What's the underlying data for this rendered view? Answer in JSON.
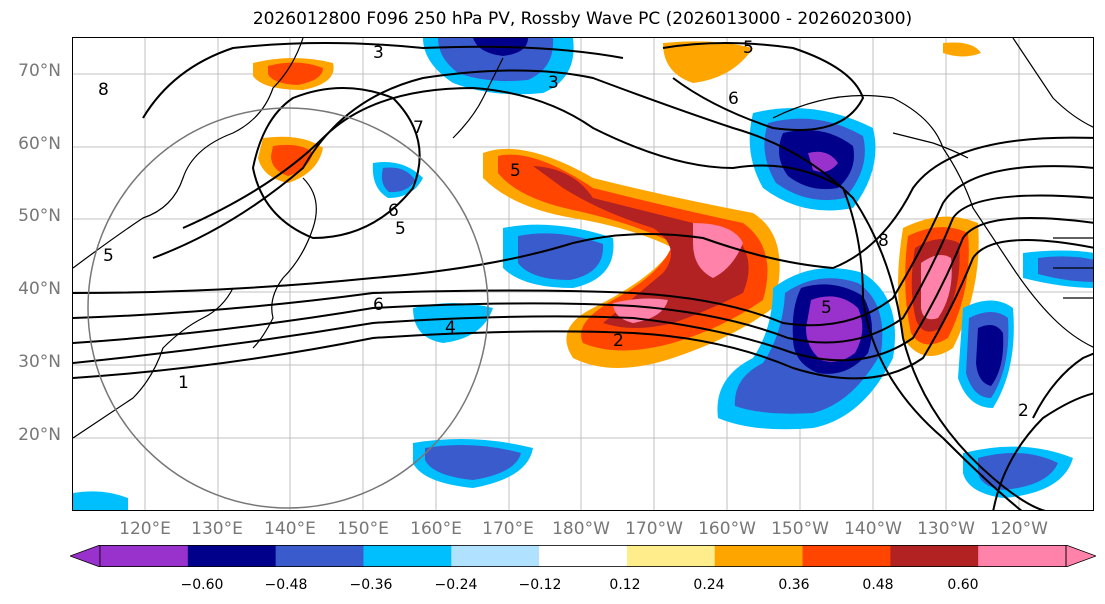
{
  "title": "2026012800 F096 250 hPa PV, Rossby Wave PC (2026013000 - 2026020300)",
  "lat_labels": [
    "70°N",
    "60°N",
    "50°N",
    "40°N",
    "30°N",
    "20°N"
  ],
  "lon_labels": [
    "120°E",
    "130°E",
    "140°E",
    "150°E",
    "160°E",
    "170°E",
    "180°W",
    "170°W",
    "160°W",
    "150°W",
    "140°W",
    "130°W",
    "120°W"
  ],
  "contour_labels": [
    "3",
    "3",
    "5",
    "6",
    "7",
    "6",
    "5",
    "5",
    "6",
    "4",
    "5",
    "2",
    "2",
    "1",
    "8",
    "8",
    "5"
  ],
  "colorbar": {
    "ticks": [
      "−0.60",
      "−0.48",
      "−0.36",
      "−0.24",
      "−0.12",
      "0.12",
      "0.24",
      "0.36",
      "0.48",
      "0.60"
    ],
    "colors": [
      "#9932CC",
      "#00008B",
      "#3A5BCC",
      "#00BFFF",
      "#B0E2FF",
      "#FFFFFF",
      "#FFEC8B",
      "#FFA500",
      "#FF4500",
      "#B22222",
      "#FF82AB"
    ]
  }
}
